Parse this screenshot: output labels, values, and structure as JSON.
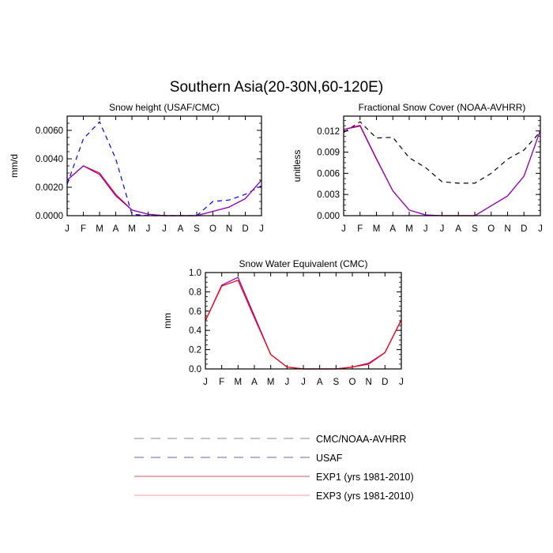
{
  "title": "Southern Asia(20-30N,60-120E)",
  "months": [
    "J",
    "F",
    "M",
    "A",
    "M",
    "J",
    "J",
    "A",
    "S",
    "O",
    "N",
    "D",
    "J"
  ],
  "colors": {
    "cmc": "#000000",
    "usaf": "#0000ff",
    "exp1": "#ff0000",
    "exp3": "#8800cc"
  },
  "legend": [
    {
      "label": "CMC/NOAA-AVHRR",
      "color": "#888888",
      "dash": true
    },
    {
      "label": "USAF",
      "color": "#6666aa",
      "dash": true
    },
    {
      "label": "EXP1 (yrs 1981-2010)",
      "color": "#cc5566",
      "dash": false
    },
    {
      "label": "EXP3 (yrs 1981-2010)",
      "color": "#ff9999",
      "dash": false
    }
  ],
  "chart_data": [
    {
      "type": "line",
      "title": "Snow height (USAF/CMC)",
      "ylabel": "mm/d",
      "ylim": [
        0,
        0.007
      ],
      "yticks": [
        "0.0000",
        "0.0020",
        "0.0040",
        "0.0060"
      ],
      "ytick_values": [
        0,
        0.002,
        0.004,
        0.006
      ],
      "series": [
        {
          "key": "usaf",
          "dash": true,
          "values": [
            0.0022,
            0.0054,
            0.0066,
            0.004,
            0.0001,
            0,
            0,
            0,
            0,
            0.001,
            0.0011,
            0.0015,
            0.0021
          ]
        },
        {
          "key": "exp1",
          "dash": false,
          "values": [
            0.0025,
            0.0035,
            0.003,
            0.0015,
            0.0004,
            0.0001,
            0,
            0,
            0,
            0.0003,
            0.0006,
            0.0012,
            0.0025
          ]
        },
        {
          "key": "exp3",
          "dash": false,
          "values": [
            0.0025,
            0.0035,
            0.0029,
            0.0014,
            0.0004,
            0.0001,
            0,
            0,
            0,
            0.0003,
            0.0006,
            0.0012,
            0.0025
          ]
        }
      ]
    },
    {
      "type": "line",
      "title": "Fractional Snow Cover (NOAA-AVHRR)",
      "ylabel": "unitless",
      "ylim": [
        0,
        0.0141
      ],
      "yticks": [
        "0.000",
        "0.003",
        "0.006",
        "0.009",
        "0.012"
      ],
      "ytick_values": [
        0,
        0.003,
        0.006,
        0.009,
        0.012
      ],
      "series": [
        {
          "key": "cmc",
          "dash": true,
          "values": [
            0.0118,
            0.0133,
            0.011,
            0.0111,
            0.0082,
            0.0068,
            0.0048,
            0.0046,
            0.0046,
            0.006,
            0.008,
            0.0093,
            0.0119
          ]
        },
        {
          "key": "exp1",
          "dash": false,
          "values": [
            0.0122,
            0.0128,
            0.0081,
            0.0035,
            0.0008,
            0.0001,
            0,
            0,
            0,
            0.0014,
            0.0028,
            0.0056,
            0.0121
          ]
        },
        {
          "key": "exp3",
          "dash": false,
          "values": [
            0.0122,
            0.0127,
            0.008,
            0.0035,
            0.0008,
            0.0001,
            0,
            0,
            0,
            0.0014,
            0.0028,
            0.0056,
            0.0121
          ]
        }
      ]
    },
    {
      "type": "line",
      "title": "Snow Water Equivalent (CMC)",
      "ylabel": "mm",
      "ylim": [
        0,
        1.0
      ],
      "yticks": [
        "0.0",
        "0.2",
        "0.4",
        "0.6",
        "0.8",
        "1.0"
      ],
      "ytick_values": [
        0,
        0.2,
        0.4,
        0.6,
        0.8,
        1.0
      ],
      "series": [
        {
          "key": "exp3",
          "dash": false,
          "values": [
            0.5,
            0.87,
            0.95,
            0.55,
            0.15,
            0.02,
            0,
            0,
            0,
            0.02,
            0.06,
            0.17,
            0.51
          ]
        },
        {
          "key": "exp1",
          "dash": false,
          "values": [
            0.5,
            0.86,
            0.92,
            0.53,
            0.15,
            0.02,
            0,
            0,
            0,
            0.02,
            0.05,
            0.17,
            0.51
          ]
        }
      ]
    }
  ]
}
